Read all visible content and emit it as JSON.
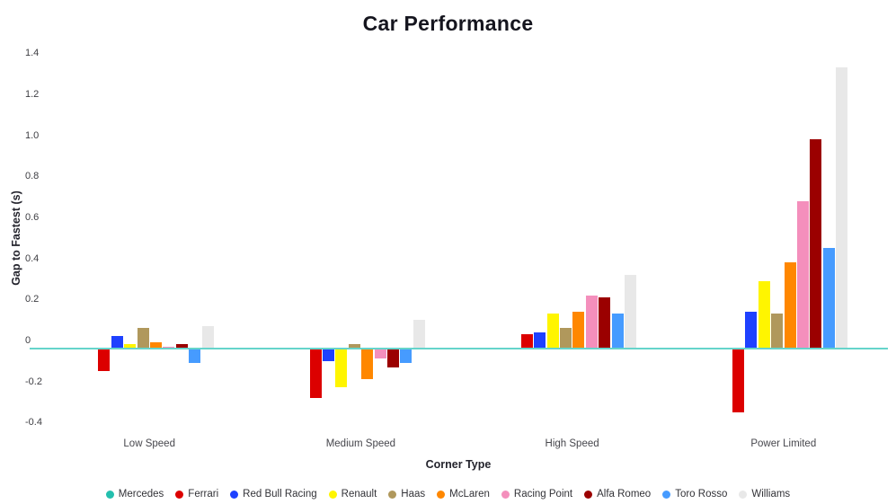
{
  "chart_data": {
    "type": "bar",
    "title": "Car Performance",
    "xlabel": "Corner Type",
    "ylabel": "Gap to Fastest (s)",
    "categories": [
      "Low Speed",
      "Medium Speed",
      "High Speed",
      "Power Limited"
    ],
    "series": [
      {
        "name": "Mercedes",
        "color": "#24bfae",
        "values": [
          0,
          0,
          0,
          0
        ]
      },
      {
        "name": "Ferrari",
        "color": "#dc0000",
        "values": [
          -0.11,
          -0.24,
          0.07,
          -0.31
        ]
      },
      {
        "name": "Red Bull Racing",
        "color": "#1e41ff",
        "values": [
          0.06,
          -0.06,
          0.08,
          0.18
        ]
      },
      {
        "name": "Renault",
        "color": "#fff500",
        "values": [
          0.02,
          -0.19,
          0.17,
          0.33
        ]
      },
      {
        "name": "Haas",
        "color": "#b0985c",
        "values": [
          0.1,
          0.02,
          0.1,
          0.17
        ]
      },
      {
        "name": "McLaren",
        "color": "#ff8700",
        "values": [
          0.03,
          -0.15,
          0.18,
          0.42
        ]
      },
      {
        "name": "Racing Point",
        "color": "#f48fbc",
        "values": [
          0.01,
          -0.05,
          0.26,
          0.72
        ]
      },
      {
        "name": "Alfa Romeo",
        "color": "#9b0000",
        "values": [
          0.02,
          -0.09,
          0.25,
          1.02
        ]
      },
      {
        "name": "Toro Rosso",
        "color": "#469bff",
        "values": [
          -0.07,
          -0.07,
          0.17,
          0.49
        ]
      },
      {
        "name": "Williams",
        "color": "#e8e8e8",
        "values": [
          0.11,
          0.14,
          0.36,
          1.37
        ]
      }
    ],
    "ytick_labels": [
      "1.4",
      "1.2",
      "1.0",
      "0.8",
      "0.6",
      "0.4",
      "0.2",
      "0",
      "-0.2",
      "-0.4"
    ],
    "ytick_values": [
      1.4,
      1.2,
      1.0,
      0.8,
      0.6,
      0.4,
      0.2,
      0,
      -0.2,
      -0.4
    ],
    "ylim": [
      -0.45,
      1.45
    ],
    "grid": false,
    "legend_position": "bottom",
    "zero_line_color": "#66d4cb"
  }
}
